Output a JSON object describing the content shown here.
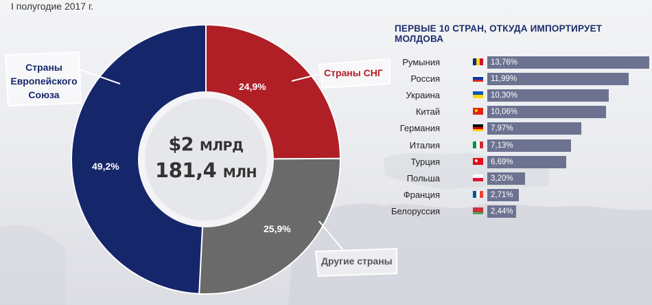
{
  "period": "I полугодие 2017 г.",
  "total": {
    "line1_value": "$2",
    "line1_unit": "МЛРД",
    "line2_value": "181,4",
    "line2_unit": "МЛН"
  },
  "colors": {
    "eu": "#15266b",
    "cis": "#b01e26",
    "other": "#6a6a6a",
    "bar": "#6c7290",
    "title": "#1c2d6b"
  },
  "chart_data": [
    {
      "type": "pie",
      "categories": [
        "Страны СНГ",
        "Другие страны",
        "Страны Европейского Союза"
      ],
      "values": [
        24.9,
        25.9,
        49.2
      ],
      "value_labels": [
        "24,9%",
        "25,9%",
        "49,2%"
      ],
      "callout_labels": {
        "cis": "Страны СНГ",
        "other": "Другие страны",
        "eu_lines": [
          "Страны",
          "Европейского",
          "Союза"
        ]
      },
      "donut": true
    },
    {
      "type": "bar",
      "orientation": "horizontal",
      "title": "ПЕРВЫЕ 10 СТРАН, ОТКУДА ИМПОРТИРУЕТ МОЛДОВА",
      "categories": [
        "Румыния",
        "Россия",
        "Украина",
        "Китай",
        "Германия",
        "Италия",
        "Турция",
        "Польша",
        "Франция",
        "Белоруссия"
      ],
      "values": [
        13.76,
        11.99,
        10.3,
        10.06,
        7.97,
        7.13,
        6.69,
        3.2,
        2.71,
        2.44
      ],
      "value_labels": [
        "13,76%",
        "11,99%",
        "10,30%",
        "10,06%",
        "7,97%",
        "7,13%",
        "6,69%",
        "3,20%",
        "2,71%",
        "2,44%"
      ],
      "flags": [
        "flag-romania-icon",
        "flag-russia-icon",
        "flag-ukraine-icon",
        "flag-china-icon",
        "flag-germany-icon",
        "flag-italy-icon",
        "flag-turkey-icon",
        "flag-poland-icon",
        "flag-france-icon",
        "flag-belarus-icon"
      ],
      "xlim": [
        0,
        13.76
      ]
    }
  ]
}
